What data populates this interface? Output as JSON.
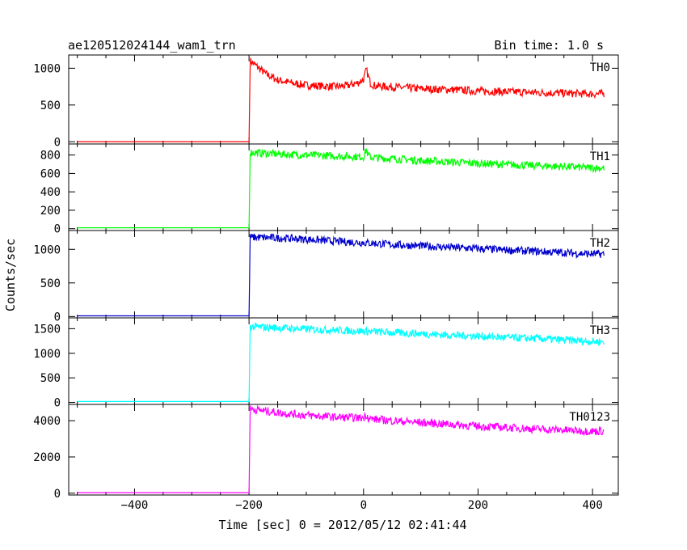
{
  "header": {
    "title": "ae120512024144_wam1_trn",
    "bin_time": "Bin time: 1.0 s"
  },
  "chart_data": {
    "type": "line",
    "title": "ae120512024144_wam1_trn",
    "xlabel": "Time [sec] 0 = 2012/05/12 02:41:44",
    "ylabel": "Counts/sec",
    "xlim": [
      -515,
      445
    ],
    "x_ticks": [
      -400,
      -200,
      0,
      200,
      400
    ],
    "x_tick_labels": [
      "−400",
      "−200",
      "0",
      "200",
      "400"
    ],
    "grid": false,
    "panels": [
      {
        "name": "TH0",
        "color": "#ff0000",
        "ylim": [
          -30,
          1180
        ],
        "y_ticks": [
          0,
          500,
          1000
        ],
        "y_tick_labels": [
          "0",
          "500",
          "1000"
        ],
        "x": [
          -500,
          -201,
          -200,
          -198,
          -190,
          -170,
          -150,
          -120,
          -100,
          -80,
          -50,
          -30,
          -10,
          0,
          5,
          8,
          12,
          20,
          40,
          60,
          100,
          150,
          200,
          250,
          300,
          350,
          400,
          420
        ],
        "values": [
          0,
          0,
          0,
          1100,
          1050,
          920,
          840,
          790,
          770,
          760,
          750,
          760,
          800,
          850,
          980,
          900,
          800,
          760,
          750,
          740,
          720,
          710,
          690,
          680,
          670,
          660,
          650,
          655
        ]
      },
      {
        "name": "TH1",
        "color": "#00ff00",
        "ylim": [
          -20,
          920
        ],
        "y_ticks": [
          0,
          200,
          400,
          600,
          800
        ],
        "y_tick_labels": [
          "0",
          "200",
          "400",
          "600",
          "800"
        ],
        "x": [
          -500,
          -201,
          -200,
          -198,
          -150,
          -100,
          -50,
          0,
          5,
          8,
          12,
          50,
          100,
          150,
          200,
          250,
          300,
          350,
          400,
          420
        ],
        "values": [
          10,
          10,
          10,
          830,
          810,
          800,
          790,
          780,
          860,
          800,
          775,
          760,
          740,
          725,
          710,
          695,
          685,
          675,
          660,
          660
        ]
      },
      {
        "name": "TH2",
        "color": "#0000cc",
        "ylim": [
          -20,
          1280
        ],
        "y_ticks": [
          0,
          500,
          1000
        ],
        "y_tick_labels": [
          "0",
          "500",
          "1000"
        ],
        "x": [
          -500,
          -201,
          -200,
          -198,
          -150,
          -100,
          -50,
          0,
          50,
          100,
          150,
          200,
          250,
          300,
          350,
          400,
          420
        ],
        "values": [
          10,
          10,
          10,
          1180,
          1170,
          1150,
          1120,
          1100,
          1070,
          1050,
          1030,
          1010,
          990,
          970,
          950,
          930,
          930
        ]
      },
      {
        "name": "TH3",
        "color": "#00ffff",
        "ylim": [
          -40,
          1720
        ],
        "y_ticks": [
          0,
          500,
          1000,
          1500
        ],
        "y_tick_labels": [
          "0",
          "500",
          "1000",
          "1500"
        ],
        "x": [
          -500,
          -201,
          -200,
          -198,
          -150,
          -100,
          -50,
          0,
          50,
          100,
          150,
          200,
          250,
          300,
          350,
          400,
          420
        ],
        "values": [
          20,
          20,
          20,
          1540,
          1520,
          1490,
          1470,
          1450,
          1420,
          1400,
          1370,
          1350,
          1320,
          1300,
          1270,
          1240,
          1240
        ]
      },
      {
        "name": "TH0123",
        "color": "#ff00ff",
        "ylim": [
          -100,
          4900
        ],
        "y_ticks": [
          0,
          2000,
          4000
        ],
        "y_tick_labels": [
          "0",
          "2000",
          "4000"
        ],
        "x": [
          -500,
          -201,
          -200,
          -198,
          -150,
          -100,
          -50,
          0,
          5,
          8,
          12,
          50,
          100,
          150,
          200,
          250,
          300,
          350,
          400,
          420
        ],
        "values": [
          30,
          30,
          30,
          4650,
          4450,
          4300,
          4200,
          4150,
          4350,
          4180,
          4100,
          4000,
          3900,
          3800,
          3700,
          3620,
          3550,
          3480,
          3420,
          3430
        ]
      }
    ]
  }
}
